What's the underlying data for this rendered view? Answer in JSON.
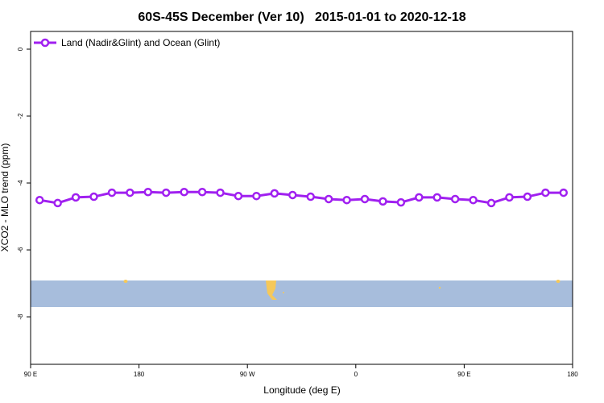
{
  "chart_data": {
    "type": "line",
    "title": "60S-45S December (Ver 10)   2015-01-01 to 2020-12-18",
    "x_label": "Longitude (deg E)",
    "y_label": "XCO2 - MLO trend (ppm)",
    "x": [
      97.5,
      112.5,
      127.5,
      142.5,
      157.5,
      172.5,
      187.5,
      202.5,
      217.5,
      232.5,
      247.5,
      262.5,
      277.5,
      292.5,
      307.5,
      322.5,
      337.5,
      352.5,
      367.5,
      382.5,
      397.5,
      412.5,
      427.5,
      442.5,
      457.5,
      472.5,
      487.5,
      502.5,
      517.5,
      532.5
    ],
    "series": [
      {
        "name": "Land (Nadir&Glint) and Ocean (Glint)",
        "color": "#a020f0",
        "values": [
          -4.51,
          -4.6,
          -4.43,
          -4.41,
          -4.29,
          -4.29,
          -4.27,
          -4.29,
          -4.27,
          -4.27,
          -4.29,
          -4.39,
          -4.39,
          -4.31,
          -4.36,
          -4.41,
          -4.48,
          -4.51,
          -4.48,
          -4.55,
          -4.58,
          -4.43,
          -4.43,
          -4.48,
          -4.51,
          -4.6,
          -4.43,
          -4.41,
          -4.29,
          -4.29
        ]
      }
    ],
    "xlim": [
      90,
      540
    ],
    "xticks": [
      {
        "value": 90,
        "label": "90 E"
      },
      180,
      {
        "value": 270,
        "label": "90 W"
      },
      {
        "value": 360,
        "label": "0"
      },
      {
        "value": 450,
        "label": "90 E"
      },
      {
        "value": 540,
        "label": "180"
      }
    ],
    "ylim": [
      -9.42,
      0.53
    ],
    "yticks": [
      0,
      -2,
      -4,
      -6,
      -8
    ],
    "legend": "top-left"
  }
}
